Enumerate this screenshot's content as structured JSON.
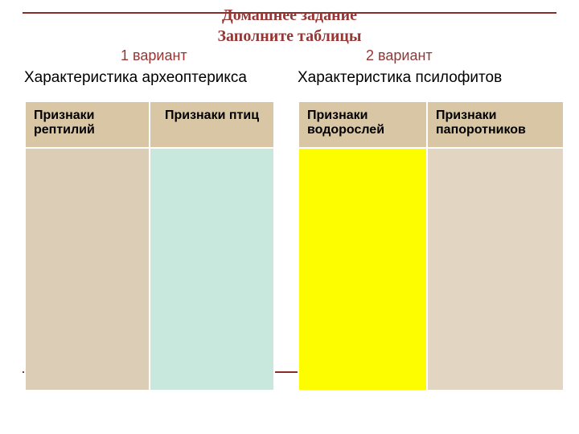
{
  "colors": {
    "accent": "#953735",
    "rule": "#8a2d29",
    "headerBg": "#d9c6a5",
    "cellBeige": "#dccdb6",
    "cellMint": "#c8e8dd",
    "cellYellow": "#fdfd00",
    "cellLightBeige": "#e2d6c3",
    "black": "#000000"
  },
  "layout": {
    "ruleTopY": 15,
    "ruleBottomY": 462,
    "variant1X": 150,
    "variant2X": 455,
    "subtitle1X": 30,
    "subtitle2X": 370,
    "table1X": 30,
    "table2X": 370,
    "col1W": 155,
    "col2W": 155,
    "col3W": 160,
    "col4W": 170
  },
  "title": {
    "line1": "Домашнее задание",
    "line2": "Заполните таблицы"
  },
  "left": {
    "variant": "1 вариант",
    "subtitle": "Характеристика археоптерикса",
    "headers": [
      "Признаки рептилий",
      "Признаки птиц"
    ]
  },
  "right": {
    "variant": "2 вариант",
    "subtitle": "Характеристика псилофитов",
    "headers": [
      "Признаки водорослей",
      "Признаки папоротников"
    ]
  }
}
